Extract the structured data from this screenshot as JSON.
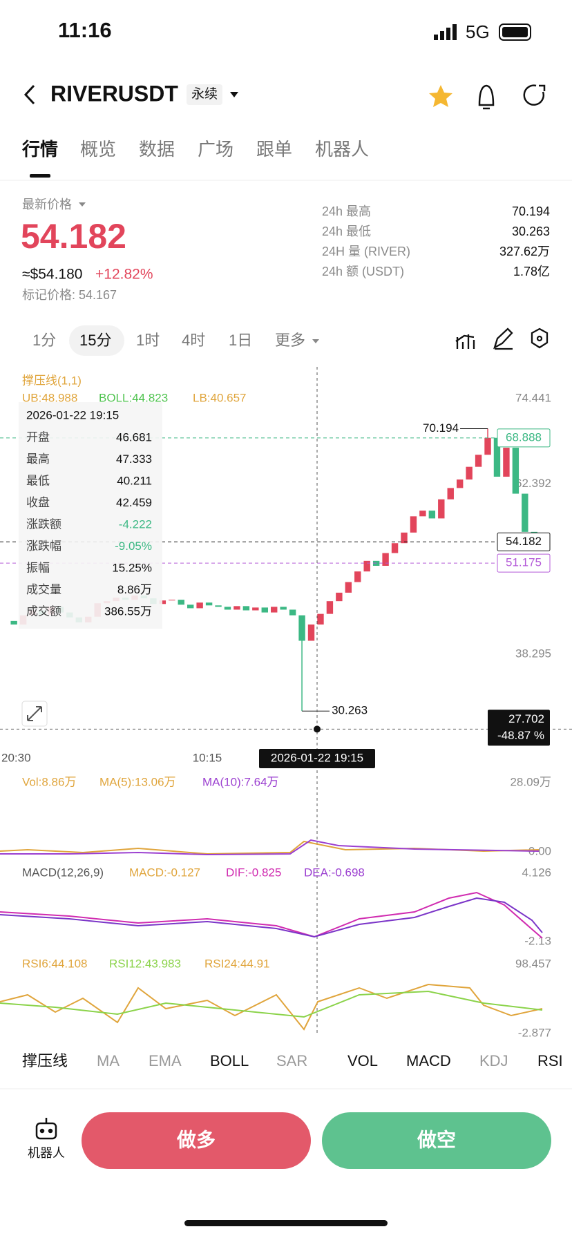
{
  "status": {
    "time": "11:16",
    "network": "5G"
  },
  "header": {
    "symbol": "RIVERUSDT",
    "contract": "永续"
  },
  "tabs": [
    "行情",
    "概览",
    "数据",
    "广场",
    "跟单",
    "机器人"
  ],
  "ticker": {
    "price_label": "最新价格",
    "price": "54.182",
    "usd": "≈$54.180",
    "change": "+12.82%",
    "mark": "标记价格: 54.167",
    "stats": [
      [
        "24h  最高",
        "70.194"
      ],
      [
        "24h  最低",
        "30.263"
      ],
      [
        "24H  量 (RIVER)",
        "327.62万"
      ],
      [
        "24h  额 (USDT)",
        "1.78亿"
      ]
    ]
  },
  "intervals": [
    "1分",
    "15分",
    "1时",
    "4时",
    "1日",
    "更多"
  ],
  "chart": {
    "indicator_title": "撑压线(1,1)",
    "boll": [
      "UB:48.988",
      "BOLL:44.823",
      "LB:40.657"
    ],
    "yticks": [
      74.441,
      62.392,
      38.295
    ],
    "closes": [
      43.0,
      42.5,
      43.8,
      44.5,
      43.9,
      45.0,
      44.2,
      43.5,
      42.8,
      43.6,
      45.5,
      45.8,
      46.3,
      46.0,
      46.6,
      46.2,
      45.4,
      45.9,
      46.0,
      45.3,
      44.8,
      45.6,
      45.2,
      45.0,
      44.6,
      45.1,
      44.5,
      44.9,
      44.2,
      45.0,
      44.6,
      43.8,
      40.2,
      42.5,
      44.0,
      45.8,
      47.0,
      48.5,
      50.0,
      51.5,
      50.8,
      52.6,
      54.0,
      55.5,
      57.8,
      58.6,
      57.5,
      60.2,
      61.8,
      63.0,
      64.8,
      66.5,
      68.9,
      63.4,
      67.5,
      61.0,
      55.6,
      54.182
    ],
    "high": 70.194,
    "low": 30.263,
    "last": 54.182,
    "ub_line": 68.888,
    "mark_line": 51.175,
    "cursor": {
      "price": 27.702,
      "change": "-48.87 %",
      "time": "2026-01-22 19:15"
    },
    "xticks": [
      "20:30",
      "10:15"
    ],
    "tooltip": {
      "time": "2026-01-22 19:15",
      "rows": [
        [
          "开盘",
          "46.681"
        ],
        [
          "最高",
          "47.333"
        ],
        [
          "最低",
          "40.211"
        ],
        [
          "收盘",
          "42.459"
        ],
        [
          "涨跌额",
          "-4.222"
        ],
        [
          "涨跌幅",
          "-9.05%"
        ],
        [
          "振幅",
          "15.25%"
        ],
        [
          "成交量",
          "8.86万"
        ],
        [
          "成交额",
          "386.55万"
        ]
      ]
    }
  },
  "vol": {
    "labels": [
      "Vol:8.86万",
      "MA(5):13.06万",
      "MA(10):7.64万"
    ],
    "max": "28.09万",
    "min": "0.00"
  },
  "macd": {
    "labels": [
      "MACD(12,26,9)",
      "MACD:-0.127",
      "DIF:-0.825",
      "DEA:-0.698"
    ],
    "max": "4.126",
    "min": "-2.13"
  },
  "rsi": {
    "labels": [
      "RSI6:44.108",
      "RSI12:43.983",
      "RSI24:44.91"
    ],
    "max": "98.457",
    "min": "-2.877"
  },
  "indicator_tabs": [
    "撑压线",
    "MA",
    "EMA",
    "BOLL",
    "SAR",
    "VOL",
    "MACD",
    "KDJ",
    "RSI"
  ],
  "footer": {
    "robot": "机器人",
    "long": "做多",
    "short": "做空"
  }
}
